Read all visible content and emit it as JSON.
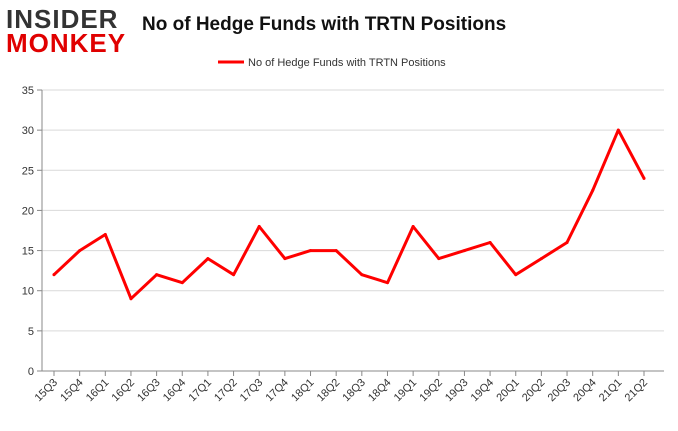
{
  "logo": {
    "line1": "INSIDER",
    "line2": "MONKEY"
  },
  "chart_data": {
    "type": "line",
    "title": "No of Hedge Funds with TRTN Positions",
    "xlabel": "",
    "ylabel": "",
    "categories": [
      "15Q3",
      "15Q4",
      "16Q1",
      "16Q2",
      "16Q3",
      "16Q4",
      "17Q1",
      "17Q2",
      "17Q3",
      "17Q4",
      "18Q1",
      "18Q2",
      "18Q3",
      "18Q4",
      "19Q1",
      "19Q2",
      "19Q3",
      "19Q4",
      "20Q1",
      "20Q2",
      "20Q3",
      "20Q4",
      "21Q1",
      "21Q2"
    ],
    "series": [
      {
        "name": "No of Hedge Funds with TRTN Positions",
        "color": "#ff0000",
        "values": [
          12,
          15,
          17,
          9,
          12,
          11,
          14,
          12,
          18,
          14,
          15,
          15,
          12,
          11,
          18,
          14,
          15,
          16,
          12,
          14,
          16,
          22.5,
          30,
          24
        ]
      }
    ],
    "ylim": [
      0,
      35
    ],
    "yticks": [
      0,
      5,
      10,
      15,
      20,
      25,
      30,
      35
    ],
    "grid": true,
    "legend_position": "top-center"
  }
}
